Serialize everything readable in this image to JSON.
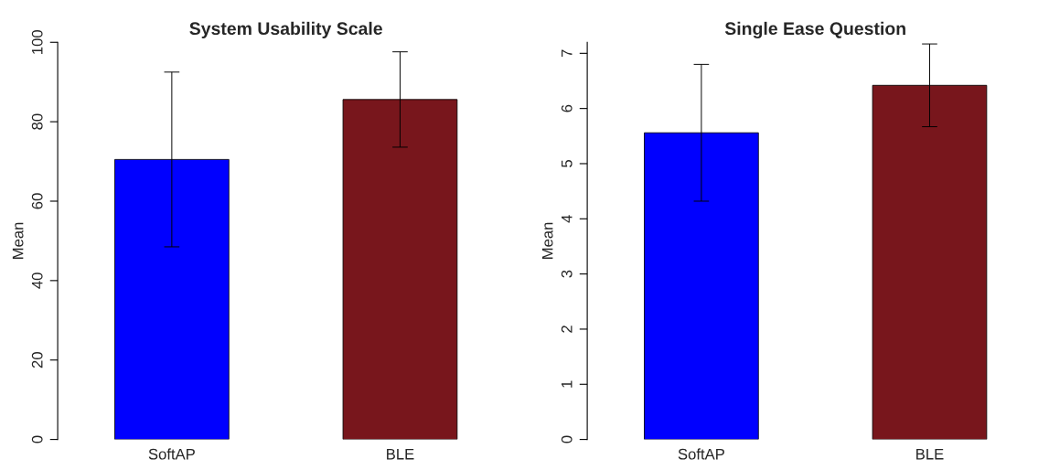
{
  "chart_data": [
    {
      "type": "bar",
      "title": "System Usability Scale",
      "ylabel": "Mean",
      "categories": [
        "SoftAP",
        "BLE"
      ],
      "values": [
        70.5,
        85.6
      ],
      "colors": [
        "#0000ff",
        "#78161c"
      ],
      "errors": [
        22,
        12
      ],
      "ylim": [
        0,
        100
      ],
      "yticks": [
        0,
        20,
        40,
        60,
        80,
        100
      ],
      "grid": false,
      "legend": false
    },
    {
      "type": "bar",
      "title": "Single Ease Question",
      "ylabel": "Mean",
      "categories": [
        "SoftAP",
        "BLE"
      ],
      "values": [
        5.56,
        6.42
      ],
      "colors": [
        "#0000ff",
        "#78161c"
      ],
      "errors": [
        1.24,
        0.75
      ],
      "ylim": [
        0,
        7.2
      ],
      "yticks": [
        0,
        1,
        2,
        3,
        4,
        5,
        6,
        7
      ],
      "grid": false,
      "legend": false
    }
  ]
}
